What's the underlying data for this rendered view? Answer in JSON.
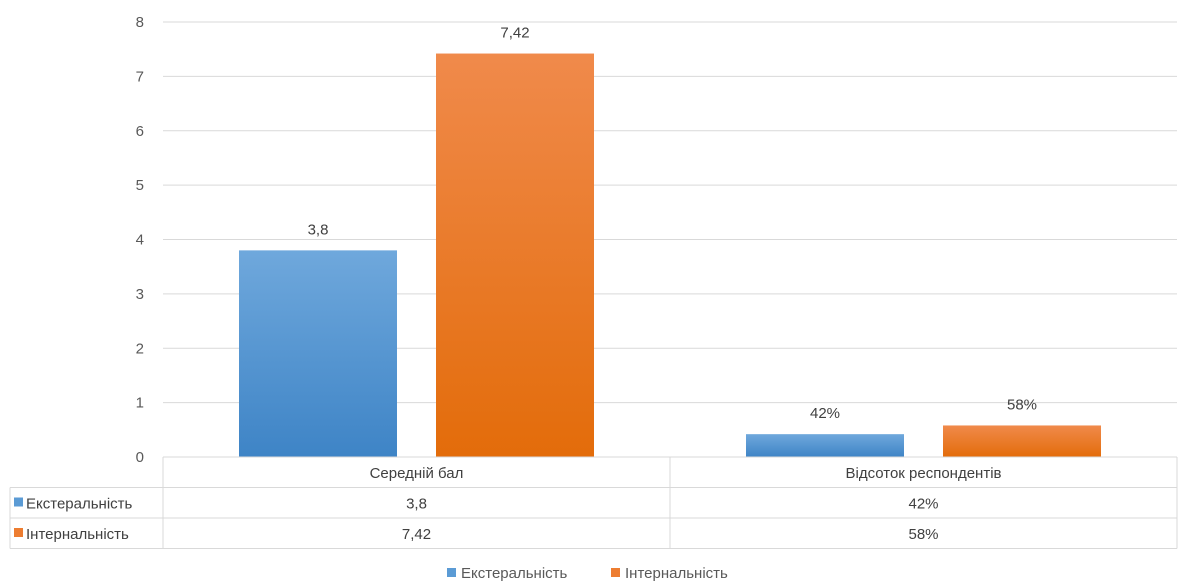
{
  "chart_data": {
    "type": "bar",
    "categories": [
      "Середній бал",
      "Відсоток респондентів"
    ],
    "series": [
      {
        "name": "Екстеральність",
        "values": [
          3.8,
          0.42
        ],
        "labels": [
          "3,8",
          "42%"
        ],
        "color": "#5B9BD5"
      },
      {
        "name": "Інтернальність",
        "values": [
          7.42,
          0.58
        ],
        "labels": [
          "7,42",
          "58%"
        ],
        "color": "#ED7D31"
      }
    ],
    "ylim": [
      0,
      8
    ],
    "yticks": [
      "0",
      "1",
      "2",
      "3",
      "4",
      "5",
      "6",
      "7",
      "8"
    ],
    "grid": true,
    "data_table": true,
    "legend": "bottom"
  }
}
